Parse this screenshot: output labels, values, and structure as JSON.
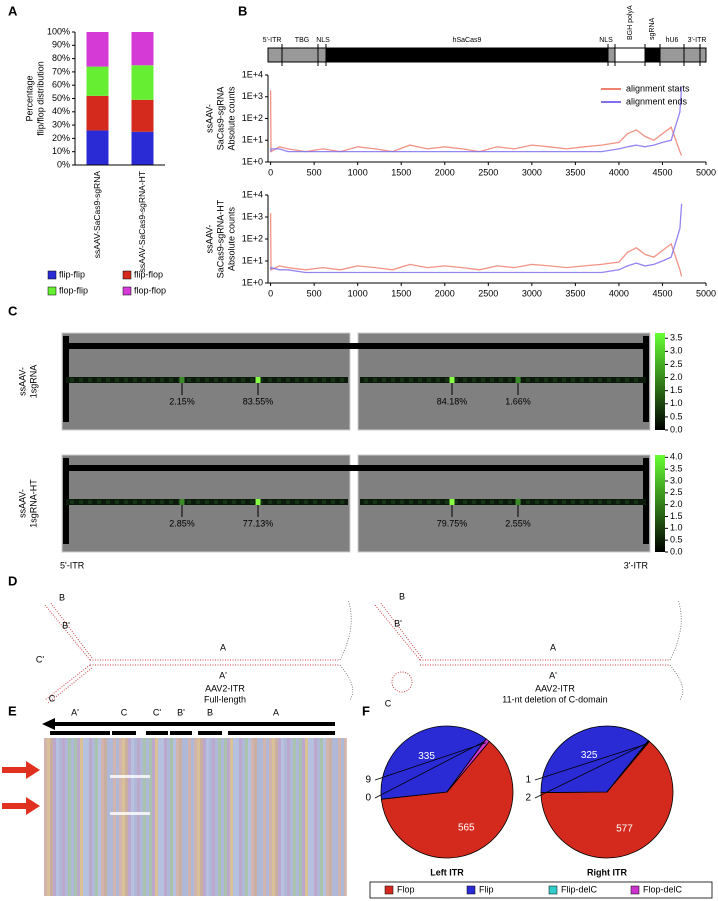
{
  "panel_labels": [
    "A",
    "B",
    "C",
    "D",
    "E",
    "F"
  ],
  "genome_map": {
    "labels": [
      "5'-ITR",
      "TBG",
      "NLS",
      "hSaCas9",
      "NLS",
      "BGH polyA",
      "sgRNA",
      "hU6",
      "3'-ITR"
    ]
  },
  "panel_d": {
    "diagrams": [
      {
        "arm_labels": [
          "B",
          "B'",
          "C'",
          "C"
        ],
        "stem_labels": [
          "A",
          "A'"
        ],
        "caption": [
          "AAV2-ITR",
          "Full-length"
        ]
      },
      {
        "arm_labels": [
          "B",
          "B'",
          "C"
        ],
        "stem_labels": [
          "A",
          "A'"
        ],
        "caption": [
          "AAV2-ITR",
          "11-nt deletion of C-domain"
        ]
      }
    ]
  },
  "panel_e": {
    "segments": [
      "A'",
      "C",
      "C'",
      "B'",
      "B",
      "A"
    ]
  },
  "chart_data": [
    {
      "type": "bar",
      "stacked": true,
      "ylabel": [
        "Percentage",
        "flip/flop distribution"
      ],
      "categories": [
        "ssAAV-SaCas9-sgRNA",
        "ssAAV-SaCas9-sgRNA-HT"
      ],
      "series": [
        {
          "name": "flip-flip",
          "color": "#2b2bd6",
          "values": [
            26,
            25
          ]
        },
        {
          "name": "flip-flop",
          "color": "#d42a1e",
          "values": [
            26,
            24
          ]
        },
        {
          "name": "flop-flip",
          "color": "#66ee33",
          "values": [
            22,
            26
          ]
        },
        {
          "name": "flop-flop",
          "color": "#d63ad6",
          "values": [
            26,
            25
          ]
        }
      ],
      "ylim": [
        0,
        100
      ],
      "yticks": [
        {
          "value": 0,
          "label": "0%"
        },
        {
          "value": 10,
          "label": "10%"
        },
        {
          "value": 20,
          "label": "20%"
        },
        {
          "value": 30,
          "label": "30%"
        },
        {
          "value": 40,
          "label": "40%"
        },
        {
          "value": 50,
          "label": "50%"
        },
        {
          "value": 60,
          "label": "60%"
        },
        {
          "value": 70,
          "label": "70%"
        },
        {
          "value": 80,
          "label": "80%"
        },
        {
          "value": 90,
          "label": "90%"
        },
        {
          "value": 100,
          "label": "100%"
        }
      ]
    },
    {
      "type": "line",
      "log_y": true,
      "legend": "upper right",
      "ylabel": [
        "ssAAV-",
        "SaCas9-sgRNA",
        "Absolute counts"
      ],
      "x": [
        0,
        5,
        100,
        200,
        400,
        600,
        800,
        1000,
        1200,
        1400,
        1600,
        1800,
        2000,
        2200,
        2400,
        2600,
        2800,
        3000,
        3200,
        3400,
        3600,
        3800,
        4000,
        4100,
        4200,
        4300,
        4400,
        4500,
        4600,
        4700,
        4720
      ],
      "series": [
        {
          "name": "alignment starts",
          "color": "#f08070",
          "values": [
            2000,
            3,
            5,
            4,
            3,
            4,
            3,
            5,
            4,
            3,
            6,
            4,
            5,
            4,
            3,
            5,
            4,
            6,
            5,
            4,
            5,
            6,
            8,
            20,
            30,
            15,
            10,
            20,
            40,
            3,
            2
          ]
        },
        {
          "name": "alignment ends",
          "color": "#8070f0",
          "values": [
            3,
            4,
            4,
            3,
            3,
            3,
            3,
            3,
            3,
            3,
            3,
            3,
            3,
            3,
            3,
            3,
            3,
            3,
            3,
            3,
            3,
            3,
            4,
            5,
            6,
            5,
            6,
            8,
            10,
            200,
            3000
          ]
        }
      ],
      "xlim": [
        -30,
        5000
      ],
      "xticks": [
        0,
        500,
        1000,
        1500,
        2000,
        2500,
        3000,
        3500,
        4000,
        4500,
        5000
      ],
      "ylim": [
        1,
        10000
      ],
      "yticks": [
        {
          "value": 1,
          "label": "1E+0"
        },
        {
          "value": 10,
          "label": "1E+1"
        },
        {
          "value": 100,
          "label": "1E+2"
        },
        {
          "value": 1000,
          "label": "1E+3"
        },
        {
          "value": 10000,
          "label": "1E+4"
        }
      ]
    },
    {
      "type": "line",
      "log_y": true,
      "ylabel": [
        "ssAAV-",
        "SaCas9-sgRNA-HT",
        "Absolute counts"
      ],
      "x": [
        0,
        5,
        100,
        200,
        400,
        600,
        800,
        1000,
        1200,
        1400,
        1600,
        1800,
        2000,
        2200,
        2400,
        2600,
        2800,
        3000,
        3200,
        3400,
        3600,
        3800,
        4000,
        4100,
        4200,
        4300,
        4400,
        4500,
        4600,
        4700,
        4720
      ],
      "series": [
        {
          "color": "#f08070",
          "values": [
            1500,
            4,
            6,
            5,
            4,
            5,
            4,
            6,
            5,
            4,
            7,
            5,
            6,
            5,
            4,
            6,
            5,
            7,
            6,
            5,
            6,
            7,
            9,
            25,
            40,
            20,
            15,
            30,
            60,
            4,
            2
          ]
        },
        {
          "color": "#8070f0",
          "values": [
            4,
            5,
            4,
            4,
            3,
            3,
            3,
            3,
            3,
            3,
            3,
            3,
            3,
            3,
            3,
            3,
            3,
            3,
            3,
            3,
            3,
            3,
            4,
            6,
            8,
            6,
            7,
            10,
            15,
            300,
            4000
          ]
        }
      ],
      "xlim": [
        -30,
        5000
      ],
      "xticks": [
        0,
        500,
        1000,
        1500,
        2000,
        2500,
        3000,
        3500,
        4000,
        4500,
        5000
      ],
      "ylim": [
        1,
        10000
      ],
      "yticks": [
        {
          "value": 1,
          "label": "1E+0"
        },
        {
          "value": 10,
          "label": "1E+1"
        },
        {
          "value": 100,
          "label": "1E+2"
        },
        {
          "value": 1000,
          "label": "1E+3"
        },
        {
          "value": 10000,
          "label": "1E+4"
        }
      ]
    },
    {
      "type": "heatmap",
      "xlabels": [
        "5'-ITR",
        "3'-ITR"
      ],
      "rows": [
        {
          "label": [
            "ssAAV-",
            "1sgRNA"
          ],
          "values": [
            2.15,
            83.55,
            84.18,
            1.66
          ],
          "value_labels": [
            "2.15%",
            "83.55%",
            "84.18%",
            "1.66%"
          ],
          "zlim": [
            0,
            3.7
          ],
          "zticks": [
            {
              "value": 0,
              "label": "0.0"
            },
            0.5,
            {
              "value": 1,
              "label": "1.0"
            },
            1.5,
            {
              "value": 2,
              "label": "2.0"
            },
            2.5,
            {
              "value": 3,
              "label": "3.0"
            },
            3.5
          ]
        },
        {
          "label": [
            "ssAAV-",
            "1sgRNA-HT"
          ],
          "values": [
            2.85,
            77.13,
            79.75,
            2.55
          ],
          "value_labels": [
            "2.85%",
            "77.13%",
            "79.75%",
            "2.55%"
          ],
          "zlim": [
            0,
            4.1
          ],
          "zticks": [
            {
              "value": 0,
              "label": "0.0"
            },
            0.5,
            {
              "value": 1,
              "label": "1.0"
            },
            1.5,
            {
              "value": 2,
              "label": "2.0"
            },
            2.5,
            {
              "value": 3,
              "label": "3.0"
            },
            3.5,
            {
              "value": 4,
              "label": "4.0"
            }
          ]
        }
      ]
    },
    {
      "type": "pie",
      "categories": [
        "Flop",
        "Flip",
        "Flip-delC",
        "Flop-delC"
      ],
      "colors": [
        "#d42a1e",
        "#2b2bd6",
        "#33cccc",
        "#cc33cc"
      ],
      "series": [
        {
          "name": "Left ITR",
          "values": [
            565,
            335,
            0,
            9
          ]
        },
        {
          "name": "Right ITR",
          "values": [
            577,
            325,
            2,
            1
          ]
        }
      ]
    }
  ]
}
